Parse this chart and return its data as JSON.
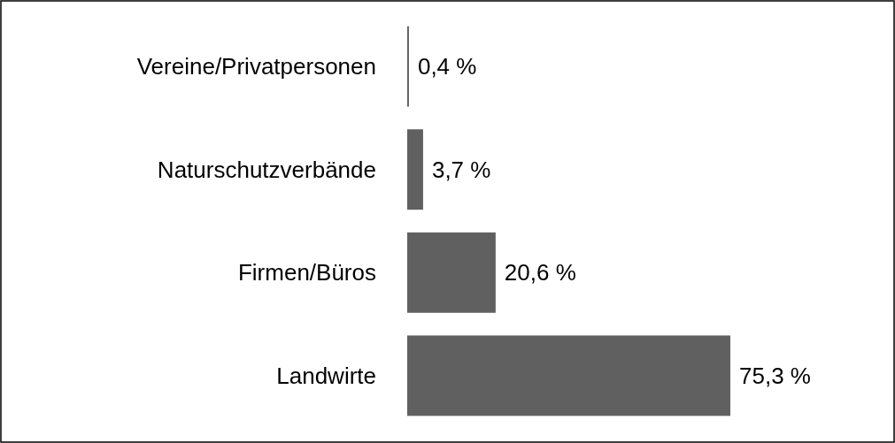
{
  "chart_data": {
    "type": "bar",
    "orientation": "horizontal",
    "categories": [
      "Vereine/Privatpersonen",
      "Naturschutzverbände",
      "Firmen/Büros",
      "Landwirte"
    ],
    "values": [
      0.4,
      3.7,
      20.6,
      75.3
    ],
    "color": "#606060",
    "value_labels": [
      "0,4 %",
      "3,7 %",
      "20,6 %",
      "75,3 %"
    ]
  }
}
